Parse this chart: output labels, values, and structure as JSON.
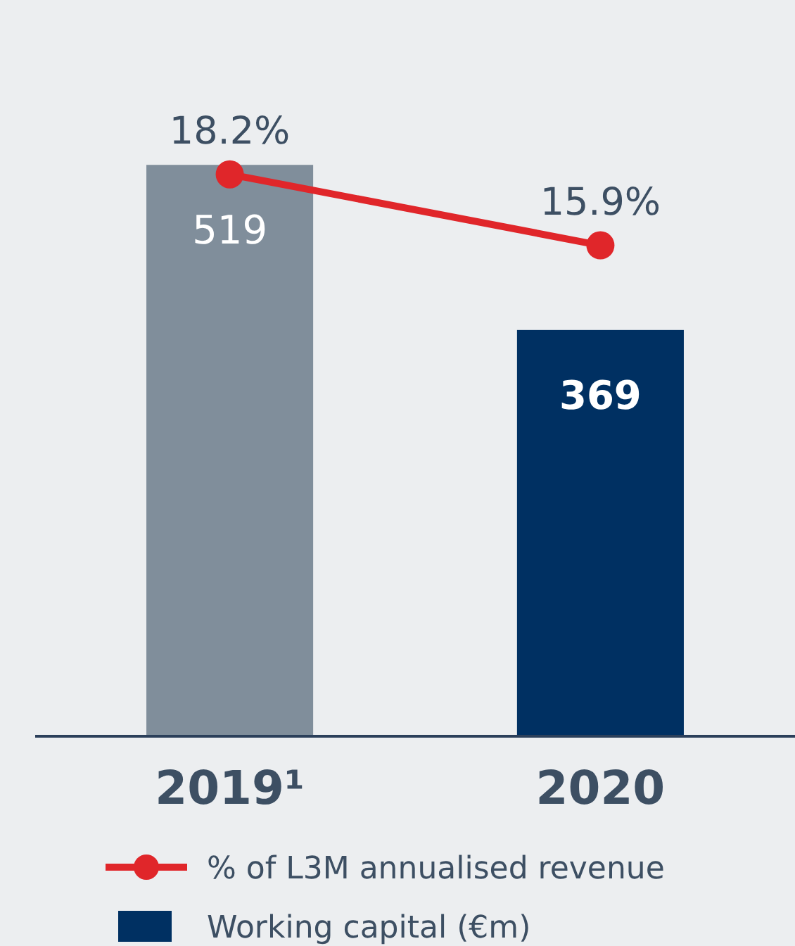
{
  "chart_data": {
    "type": "bar",
    "categories": [
      "2019¹",
      "2020"
    ],
    "series": [
      {
        "name": "% of L3M annualised revenue",
        "type": "line",
        "axis": "y2",
        "color": "#e0262a",
        "values": [
          18.2,
          15.9
        ],
        "value_labels": [
          "18.2%",
          "15.9%"
        ],
        "marker": "circle"
      },
      {
        "name": "Working capital (€m)",
        "color": "#003062",
        "colors": [
          "#808e9b",
          "#003062"
        ],
        "values": [
          519,
          369
        ]
      }
    ],
    "data_labels": true,
    "tick_labels": "x",
    "legend": "bottom"
  }
}
